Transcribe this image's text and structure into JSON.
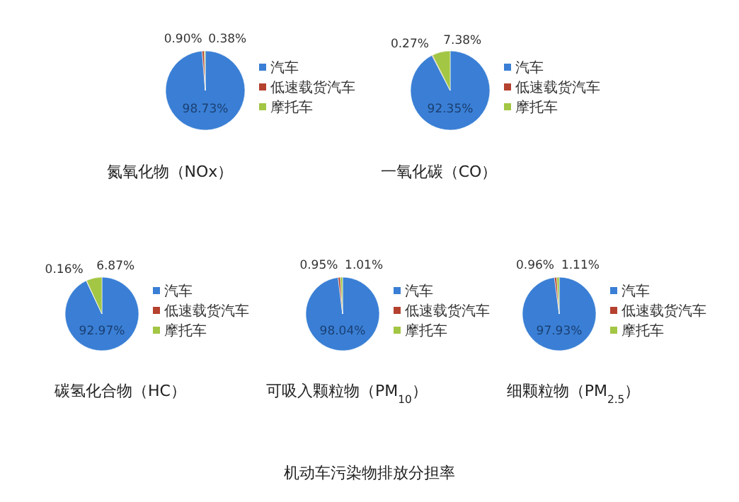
{
  "chart_data": [
    {
      "type": "pie",
      "title": "氮氧化物（NOx）",
      "categories": [
        "汽车",
        "低速载货汽车",
        "摩托车"
      ],
      "values": [
        98.73,
        0.9,
        0.38
      ],
      "value_labels": [
        "98.73%",
        "0.90%",
        "0.38%"
      ],
      "colors": [
        "#3a7fd5",
        "#b5412f",
        "#a3c644"
      ],
      "legend": "right"
    },
    {
      "type": "pie",
      "title": "一氧化碳（CO）",
      "categories": [
        "汽车",
        "低速载货汽车",
        "摩托车"
      ],
      "values": [
        92.35,
        0.27,
        7.38
      ],
      "value_labels": [
        "92.35%",
        "0.27%",
        "7.38%"
      ],
      "colors": [
        "#3a7fd5",
        "#b5412f",
        "#a3c644"
      ],
      "legend": "right"
    },
    {
      "type": "pie",
      "title": "碳氢化合物（HC）",
      "categories": [
        "汽车",
        "低速载货汽车",
        "摩托车"
      ],
      "values": [
        92.97,
        0.16,
        6.87
      ],
      "value_labels": [
        "92.97%",
        "0.16%",
        "6.87%"
      ],
      "colors": [
        "#3a7fd5",
        "#b5412f",
        "#a3c644"
      ],
      "legend": "right"
    },
    {
      "type": "pie",
      "title": "可吸入颗粒物（PM$_{10}$）",
      "categories": [
        "汽车",
        "低速载货汽车",
        "摩托车"
      ],
      "values": [
        98.04,
        0.95,
        1.01
      ],
      "value_labels": [
        "98.04%",
        "0.95%",
        "1.01%"
      ],
      "colors": [
        "#3a7fd5",
        "#b5412f",
        "#a3c644"
      ],
      "legend": "right"
    },
    {
      "type": "pie",
      "title": "细颗粒物（PM$_{2.5}$）",
      "categories": [
        "汽车",
        "低速载货汽车",
        "摩托车"
      ],
      "values": [
        97.93,
        0.96,
        1.11
      ],
      "value_labels": [
        "97.93%",
        "0.96%",
        "1.11%"
      ],
      "colors": [
        "#3a7fd5",
        "#b5412f",
        "#a3c644"
      ],
      "legend": "right",
      "annotations": [
        "机动车污染物排放分担率"
      ]
    }
  ]
}
